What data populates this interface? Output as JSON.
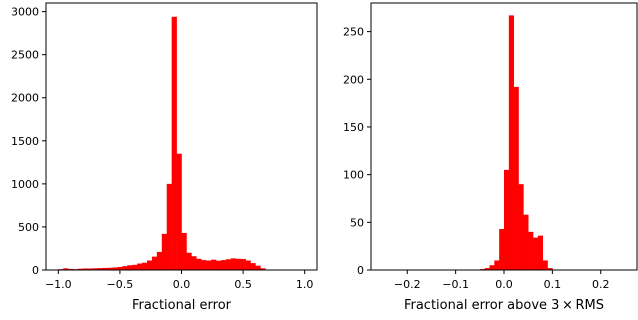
{
  "chart_data": [
    {
      "type": "bar",
      "subtype": "histogram",
      "xlabel": "Fractional error",
      "ylabel": "",
      "xlim": [
        -1.1,
        1.1
      ],
      "ylim": [
        0,
        3100
      ],
      "xticks": [
        -1.0,
        -0.5,
        0.0,
        0.5,
        1.0
      ],
      "xtick_labels": [
        "−1.0",
        "−0.5",
        "0.0",
        "0.5",
        "1.0"
      ],
      "yticks": [
        0,
        500,
        1000,
        1500,
        2000,
        2500,
        3000
      ],
      "ytick_labels": [
        "0",
        "500",
        "1000",
        "1500",
        "2000",
        "2500",
        "3000"
      ],
      "color": "#ff0000",
      "grid": false,
      "bins": {
        "start": -1.0,
        "width": 0.04
      },
      "values": [
        10,
        20,
        12,
        10,
        15,
        18,
        18,
        20,
        22,
        24,
        26,
        30,
        35,
        45,
        55,
        60,
        75,
        85,
        110,
        155,
        210,
        420,
        1000,
        2940,
        1350,
        430,
        200,
        160,
        130,
        115,
        110,
        120,
        108,
        115,
        125,
        135,
        130,
        128,
        110,
        80,
        50,
        20,
        5
      ]
    },
    {
      "type": "bar",
      "subtype": "histogram",
      "xlabel": "Fractional error above 3 × RMS",
      "ylabel": "",
      "xlim": [
        -0.275,
        0.275
      ],
      "ylim": [
        0,
        280
      ],
      "xticks": [
        -0.2,
        -0.1,
        0.0,
        0.1,
        0.2
      ],
      "xtick_labels": [
        "−0.2",
        "−0.1",
        "0.0",
        "0.1",
        "0.2"
      ],
      "yticks": [
        0,
        50,
        100,
        150,
        200,
        250
      ],
      "ytick_labels": [
        "0",
        "50",
        "100",
        "150",
        "200",
        "250"
      ],
      "color": "#ff0000",
      "grid": false,
      "bins": {
        "start": -0.05,
        "width": 0.01
      },
      "values": [
        1,
        2,
        5,
        10,
        43,
        105,
        267,
        192,
        90,
        58,
        40,
        34,
        36,
        10,
        2
      ]
    }
  ]
}
